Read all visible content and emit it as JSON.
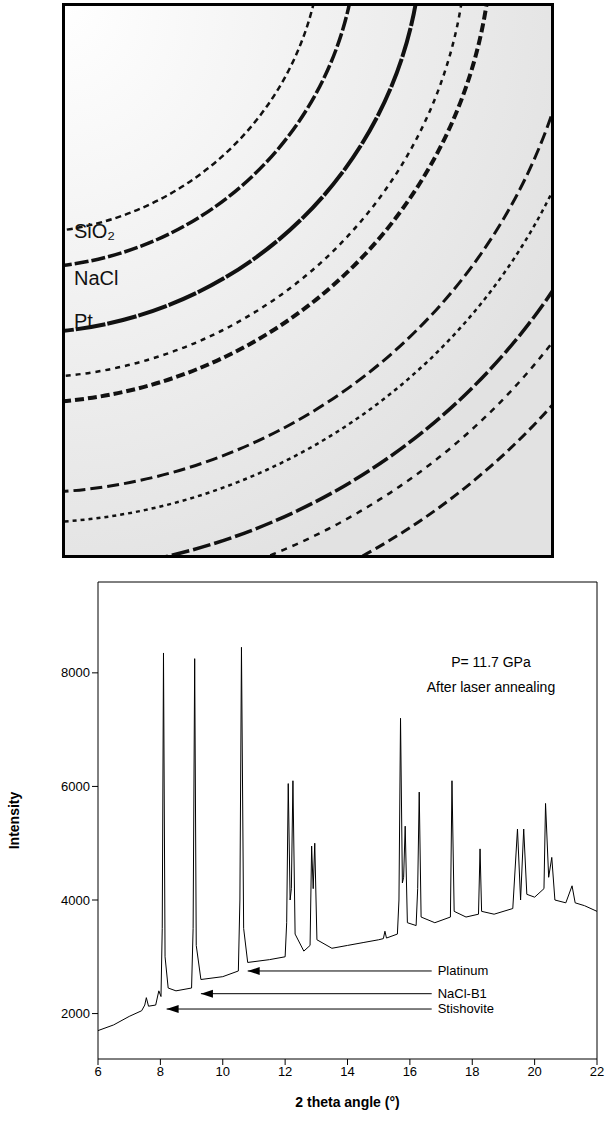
{
  "diffraction_image": {
    "labels": [
      "SiO₂",
      "NaCl",
      "Pt"
    ]
  },
  "chart_data": {
    "type": "line",
    "x_label": "2 theta angle (°)",
    "y_label": "Intensity",
    "x": [
      6.0,
      6.5,
      7.0,
      7.4,
      7.5,
      7.55,
      7.62,
      7.85,
      7.95,
      8.02,
      8.06,
      8.1,
      8.15,
      8.25,
      8.5,
      9.0,
      9.05,
      9.1,
      9.15,
      9.3,
      10.0,
      10.5,
      10.55,
      10.6,
      10.67,
      10.8,
      11.5,
      12.0,
      12.05,
      12.1,
      12.16,
      12.2,
      12.25,
      12.32,
      12.6,
      12.8,
      12.85,
      12.9,
      12.95,
      13.02,
      13.5,
      14.0,
      14.5,
      15.0,
      15.15,
      15.2,
      15.25,
      15.6,
      15.65,
      15.7,
      15.76,
      15.8,
      15.85,
      15.92,
      16.2,
      16.25,
      16.3,
      16.36,
      16.8,
      17.3,
      17.35,
      17.42,
      17.8,
      18.2,
      18.25,
      18.3,
      18.7,
      19.3,
      19.45,
      19.55,
      19.65,
      19.75,
      20.0,
      20.3,
      20.35,
      20.45,
      20.55,
      20.65,
      21.0,
      21.2,
      21.3,
      21.6,
      22.0
    ],
    "values": [
      1700,
      1800,
      1950,
      2050,
      2150,
      2280,
      2130,
      2150,
      2400,
      2300,
      3500,
      8350,
      3000,
      2450,
      2400,
      2450,
      3500,
      8250,
      3200,
      2600,
      2650,
      2750,
      4000,
      8450,
      3500,
      2900,
      2950,
      3000,
      3600,
      6050,
      4000,
      4200,
      6100,
      3400,
      3100,
      3200,
      4950,
      4200,
      5000,
      3300,
      3150,
      3200,
      3250,
      3300,
      3320,
      3450,
      3330,
      3400,
      4000,
      7200,
      4300,
      4400,
      5300,
      3600,
      3550,
      4200,
      5900,
      3700,
      3600,
      3700,
      6100,
      3800,
      3700,
      3750,
      4900,
      3800,
      3750,
      3850,
      5250,
      4000,
      5250,
      4100,
      4050,
      4200,
      5700,
      4400,
      4750,
      4000,
      3950,
      4250,
      3950,
      3900,
      3800
    ],
    "color": "#000000",
    "xlim": [
      6,
      22
    ],
    "xticks": [
      6,
      8,
      10,
      12,
      14,
      16,
      18,
      20,
      22
    ],
    "ylim": [
      1200,
      9600
    ],
    "yticks": [
      2000,
      4000,
      6000,
      8000
    ],
    "grid": false,
    "annotations": [
      {
        "text": "P= 11.7 GPa",
        "x": 18.6,
        "y": 8200
      },
      {
        "text": "After laser annealing",
        "x": 18.6,
        "y": 7750
      },
      {
        "text": "Platinum",
        "xy": [
          10.8,
          2750
        ],
        "xytext": [
          16.7,
          2750
        ]
      },
      {
        "text": "NaCl-B1",
        "xy": [
          9.3,
          2350
        ],
        "xytext": [
          16.7,
          2350
        ]
      },
      {
        "text": "Stishovite",
        "xy": [
          8.2,
          2080
        ],
        "xytext": [
          16.7,
          2080
        ]
      }
    ]
  }
}
